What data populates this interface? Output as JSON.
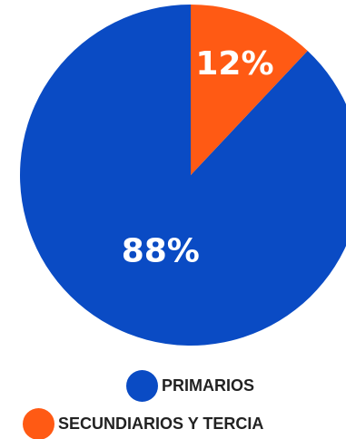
{
  "chart_data": {
    "type": "pie",
    "title": "",
    "start_angle_deg": 0,
    "direction": "counterclockwise",
    "slices": [
      {
        "label": "PRIMARIOS",
        "value": 88,
        "value_label": "88%",
        "color": "#0a4bc4"
      },
      {
        "label": "SECUNDIARIOS Y TERCIA",
        "value": 12,
        "value_label": "12%",
        "color": "#ff5a14"
      }
    ],
    "legend_position": "bottom"
  }
}
